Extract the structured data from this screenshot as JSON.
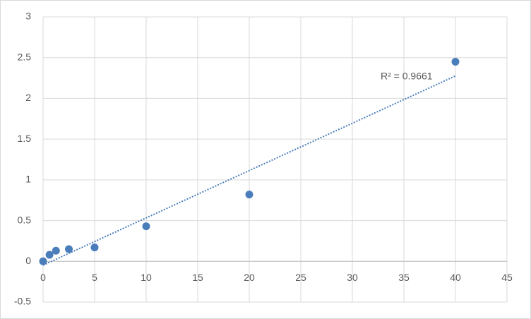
{
  "chart_data": {
    "type": "scatter",
    "x": [
      0,
      0.625,
      1.25,
      2.5,
      5,
      10,
      20,
      40
    ],
    "values": [
      0.0,
      0.08,
      0.13,
      0.15,
      0.17,
      0.43,
      0.82,
      2.45
    ],
    "color": "#4a7ebb",
    "xlim": [
      0,
      45
    ],
    "xticks": [
      0,
      5,
      10,
      15,
      20,
      25,
      30,
      35,
      40,
      45
    ],
    "ylim": [
      -0.5,
      3
    ],
    "yticks": [
      -0.5,
      0,
      0.5,
      1,
      1.5,
      2,
      2.5,
      3
    ],
    "grid": true,
    "trendline": "linear",
    "annotation": "R² = 0.9661"
  }
}
